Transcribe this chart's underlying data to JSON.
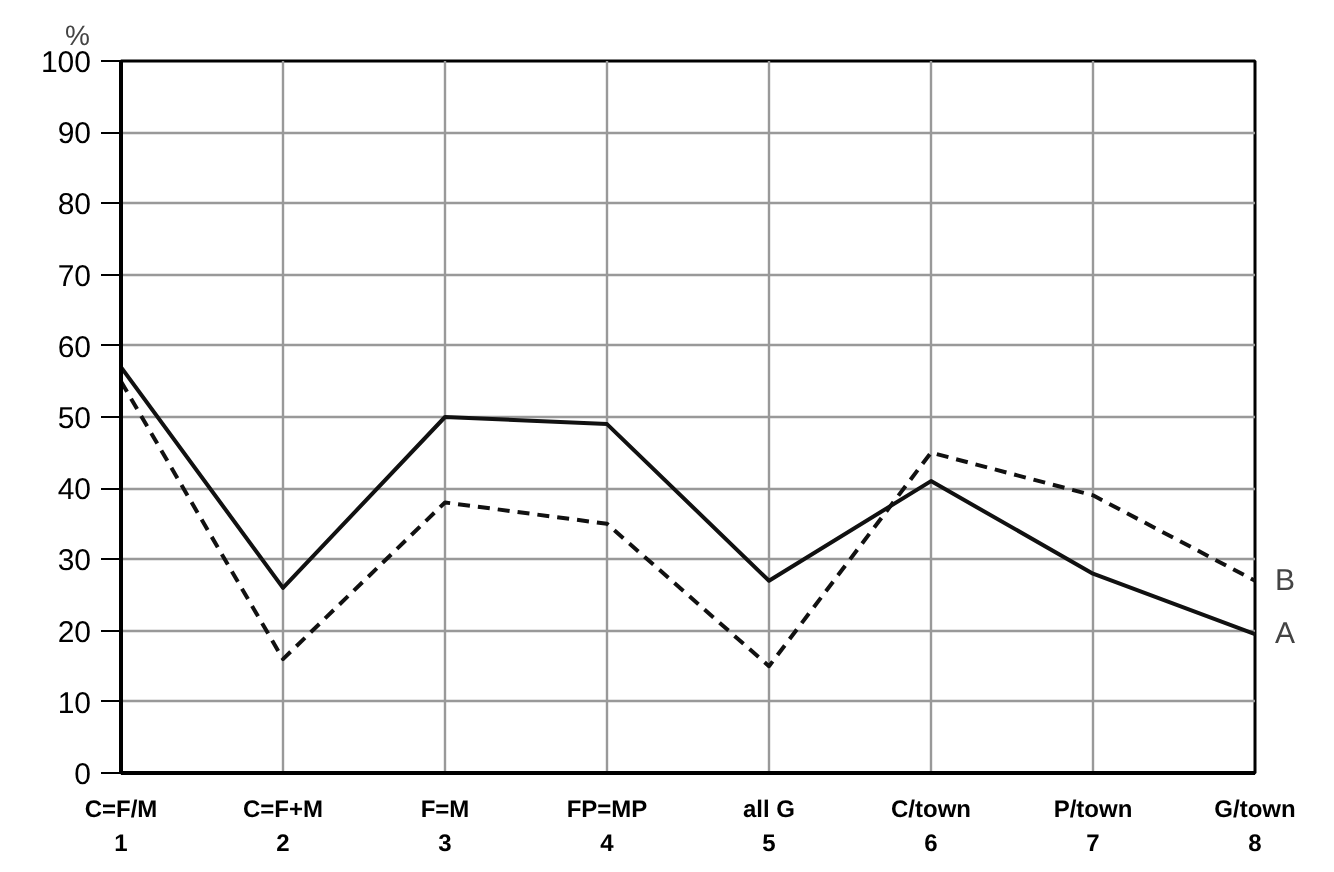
{
  "chart_data": {
    "type": "line",
    "ylabel": "%",
    "categories": [
      "C=F/M\n1",
      "C=F+M\n2",
      "F=M\n3",
      "FP=MP\n4",
      "all G\n5",
      "C/town\n6",
      "P/town\n7",
      "G/town\n8"
    ],
    "ylim": [
      0,
      100
    ],
    "yticks": [
      0,
      10,
      20,
      30,
      40,
      50,
      60,
      70,
      80,
      90,
      100
    ],
    "grid": true,
    "marker": "none",
    "series": [
      {
        "name": "A",
        "color": "#111111",
        "line_style": "solid",
        "values": [
          57,
          26,
          50,
          49,
          27,
          41,
          28,
          19.5
        ]
      },
      {
        "name": "B",
        "color": "#111111",
        "line_style": "dashed",
        "values": [
          55,
          16,
          38,
          35,
          15,
          45,
          39,
          27
        ]
      }
    ]
  }
}
